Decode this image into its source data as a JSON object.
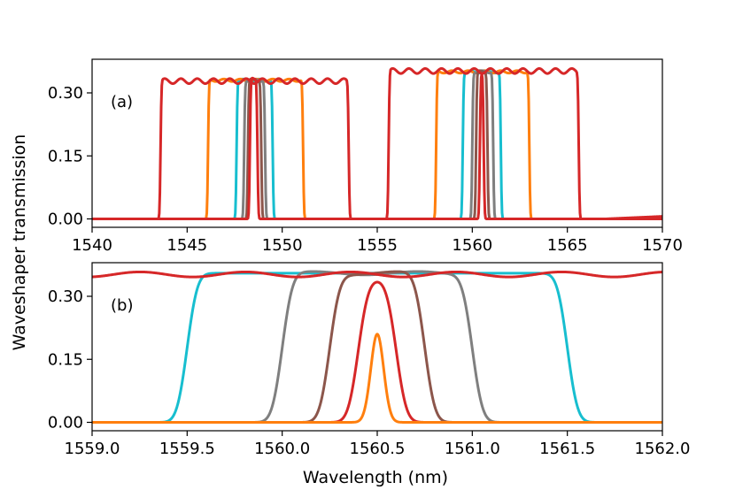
{
  "chart_data": [
    {
      "type": "line",
      "panel_label": "(a)",
      "xlim": [
        1540,
        1570
      ],
      "ylim": [
        -0.02,
        0.38
      ],
      "xticks": [
        "1540",
        "1545",
        "1550",
        "1555",
        "1560",
        "1565",
        "1570"
      ],
      "xtick_values": [
        1540,
        1545,
        1550,
        1555,
        1560,
        1565,
        1570
      ],
      "yticks": [
        "0.00",
        "0.15",
        "0.30"
      ],
      "ytick_values": [
        0.0,
        0.15,
        0.3
      ],
      "series": [
        {
          "name": "cyan",
          "color": "#17becf",
          "windows": [
            [
              1547.6,
              1549.5,
              0.33
            ],
            [
              1559.5,
              1561.5,
              0.35
            ]
          ],
          "ripple": 0.003
        },
        {
          "name": "orange",
          "color": "#ff7f0e",
          "windows": [
            [
              1546.1,
              1551.1,
              0.33
            ],
            [
              1558.1,
              1563.0,
              0.35
            ]
          ],
          "ripple": 0.003
        },
        {
          "name": "gray",
          "color": "#7f7f7f",
          "windows": [
            [
              1548.0,
              1549.1,
              0.33
            ],
            [
              1560.0,
              1561.1,
              0.35
            ]
          ],
          "ripple": 0.003
        },
        {
          "name": "brown",
          "color": "#8c564b",
          "windows": [
            [
              1548.2,
              1548.9,
              0.33
            ],
            [
              1560.2,
              1560.8,
              0.35
            ]
          ],
          "ripple": 0.003
        },
        {
          "name": "red-narrow",
          "color": "#d62728",
          "windows": [
            [
              1548.3,
              1548.7,
              0.335
            ],
            [
              1560.4,
              1560.6,
              0.35
            ]
          ],
          "ripple": 0.003
        },
        {
          "name": "red-wide",
          "color": "#d62728",
          "windows": [
            [
              1543.6,
              1553.5,
              0.328
            ],
            [
              1555.6,
              1565.6,
              0.352
            ]
          ],
          "ripple": 0.006
        }
      ]
    },
    {
      "type": "line",
      "panel_label": "(b)",
      "xlim": [
        1559.0,
        1562.0
      ],
      "ylim": [
        -0.02,
        0.38
      ],
      "xticks": [
        "1559.0",
        "1559.5",
        "1560.0",
        "1560.5",
        "1561.0",
        "1561.5",
        "1562.0"
      ],
      "xtick_values": [
        1559.0,
        1559.5,
        1560.0,
        1560.5,
        1561.0,
        1561.5,
        1562.0
      ],
      "yticks": [
        "0.00",
        "0.15",
        "0.30"
      ],
      "ytick_values": [
        0.0,
        0.15,
        0.3
      ],
      "series": [
        {
          "name": "cyan",
          "color": "#17becf",
          "windows": [
            [
              1559.5,
              1561.5,
              0.355
            ]
          ],
          "ripple": 0.0
        },
        {
          "name": "gray",
          "color": "#7f7f7f",
          "windows": [
            [
              1560.0,
              1561.0,
              0.355
            ]
          ],
          "ripple": 0.004
        },
        {
          "name": "brown",
          "color": "#8c564b",
          "windows": [
            [
              1560.25,
              1560.75,
              0.355
            ]
          ],
          "ripple": 0.004
        },
        {
          "name": "red-narrow",
          "color": "#d62728",
          "windows": [
            [
              1560.4,
              1560.6,
              0.34
            ]
          ],
          "ripple": 0.0
        },
        {
          "name": "orange",
          "color": "#ff7f0e",
          "windows": [
            [
              1560.5,
              1560.5,
              0.21
            ]
          ],
          "ripple": 0.0
        },
        {
          "name": "red-flat",
          "color": "#d62728",
          "windows": [
            [
              1558.0,
              1563.0,
              0.352
            ]
          ],
          "ripple": 0.006
        }
      ]
    }
  ],
  "ylabel": "Waveshaper transmission",
  "xlabel": "Wavelength (nm)"
}
